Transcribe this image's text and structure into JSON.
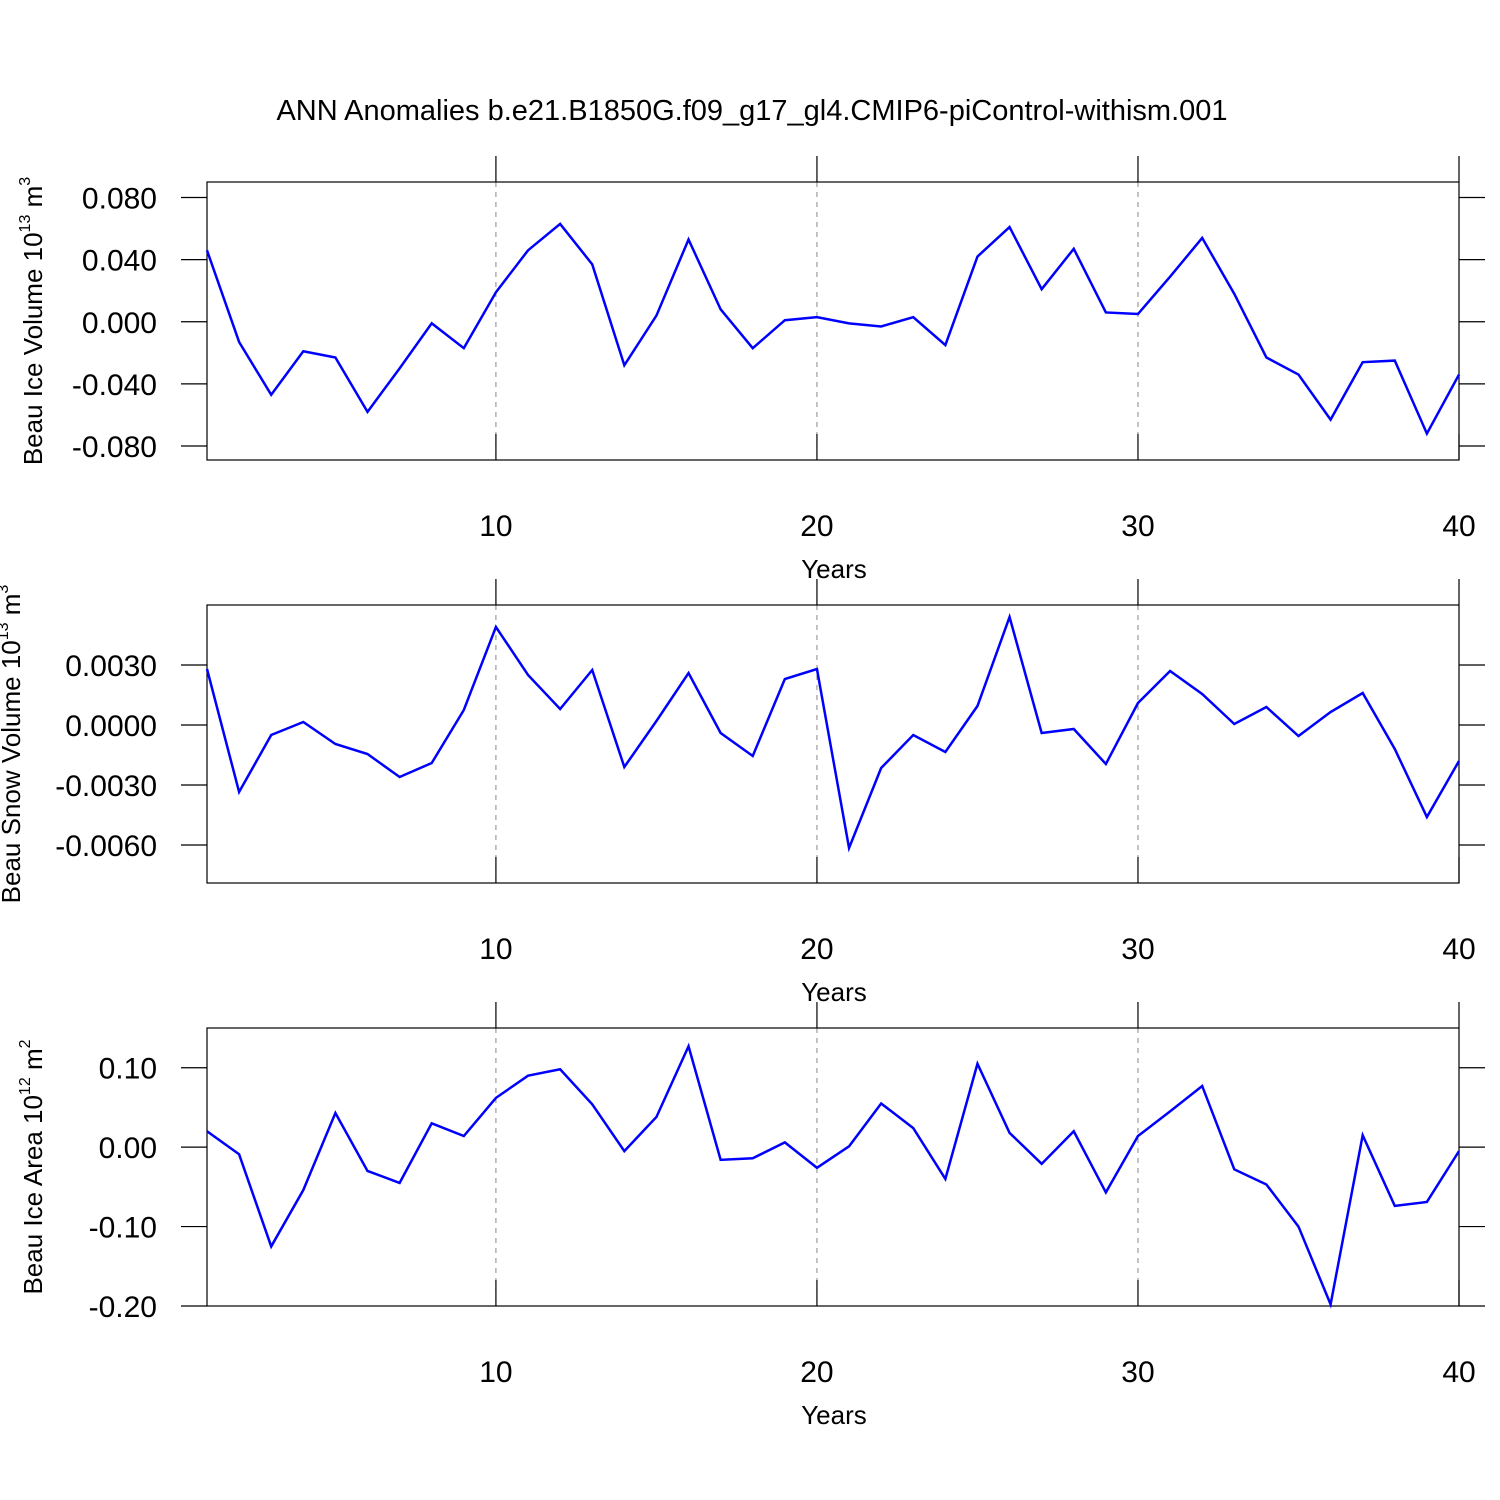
{
  "chart_data": [
    {
      "type": "line",
      "title": "ANN Anomalies b.e21.B1850G.f09_g17_gl4.CMIP6-piControl-withism.001",
      "y_label": [
        "Beau Ice Volume 10",
        "13",
        " m",
        "3"
      ],
      "x_label": "Years",
      "x": [
        1,
        2,
        3,
        4,
        5,
        6,
        7,
        8,
        9,
        10,
        11,
        12,
        13,
        14,
        15,
        16,
        17,
        18,
        19,
        20,
        21,
        22,
        23,
        24,
        25,
        26,
        27,
        28,
        29,
        30,
        31,
        32,
        33,
        34,
        35,
        36,
        37,
        38,
        39,
        40
      ],
      "values": [
        0.046,
        -0.013,
        -0.047,
        -0.019,
        -0.023,
        -0.058,
        -0.03,
        -0.001,
        -0.017,
        0.019,
        0.046,
        0.063,
        0.037,
        -0.028,
        0.004,
        0.053,
        0.008,
        -0.017,
        0.001,
        0.003,
        -0.001,
        -0.003,
        0.003,
        -0.015,
        0.042,
        0.061,
        0.021,
        0.047,
        0.006,
        0.005,
        0.029,
        0.054,
        0.018,
        -0.023,
        -0.034,
        -0.063,
        -0.026,
        -0.025,
        -0.072,
        -0.034
      ],
      "color": "#0000ff",
      "xlim": [
        1,
        40
      ],
      "xticks": [
        10,
        20,
        30,
        40
      ],
      "ylim": [
        -0.089,
        0.09
      ],
      "yticks": [
        {
          "value": 0.08,
          "label": "0.080"
        },
        {
          "value": 0.04,
          "label": "0.040"
        },
        {
          "value": 0,
          "label": "0.000"
        },
        {
          "value": -0.04,
          "label": "-0.040"
        },
        {
          "value": -0.08,
          "label": "-0.080"
        }
      ],
      "grid": true
    },
    {
      "type": "line",
      "y_label": [
        "Beau Snow Volume 10",
        "13",
        " m",
        "3"
      ],
      "x_label": "Years",
      "x": [
        1,
        2,
        3,
        4,
        5,
        6,
        7,
        8,
        9,
        10,
        11,
        12,
        13,
        14,
        15,
        16,
        17,
        18,
        19,
        20,
        21,
        22,
        23,
        24,
        25,
        26,
        27,
        28,
        29,
        30,
        31,
        32,
        33,
        34,
        35,
        36,
        37,
        38,
        39,
        40
      ],
      "values": [
        0.0028,
        -0.00335,
        -0.0005,
        0.00015,
        -0.00095,
        -0.00145,
        -0.0026,
        -0.0019,
        0.00075,
        0.0049,
        0.0025,
        0.0008,
        0.00275,
        -0.0021,
        0.0002,
        0.0026,
        -0.0004,
        -0.00155,
        0.0023,
        0.0028,
        -0.00615,
        -0.00215,
        -0.0005,
        -0.00135,
        0.00095,
        0.0054,
        -0.0004,
        -0.0002,
        -0.00195,
        0.0011,
        0.0027,
        0.00155,
        5e-05,
        0.0009,
        -0.00055,
        0.00065,
        0.0016,
        -0.0012,
        -0.0046,
        -0.0018
      ],
      "color": "#0000ff",
      "xlim": [
        1,
        40
      ],
      "xticks": [
        10,
        20,
        30,
        40
      ],
      "ylim": [
        -0.0079,
        0.006
      ],
      "yticks": [
        {
          "value": 0.003,
          "label": "0.0030"
        },
        {
          "value": 0,
          "label": "0.0000"
        },
        {
          "value": -0.003,
          "label": "-0.0030"
        },
        {
          "value": -0.006,
          "label": "-0.0060"
        }
      ],
      "grid": true
    },
    {
      "type": "line",
      "y_label": [
        "Beau Ice Area 10",
        "12",
        " m",
        "2"
      ],
      "x_label": "Years",
      "x": [
        1,
        2,
        3,
        4,
        5,
        6,
        7,
        8,
        9,
        10,
        11,
        12,
        13,
        14,
        15,
        16,
        17,
        18,
        19,
        20,
        21,
        22,
        23,
        24,
        25,
        26,
        27,
        28,
        29,
        30,
        31,
        32,
        33,
        34,
        35,
        36,
        37,
        38,
        39,
        40
      ],
      "values": [
        0.02,
        -0.009,
        -0.125,
        -0.054,
        0.043,
        -0.03,
        -0.045,
        0.03,
        0.014,
        0.062,
        0.09,
        0.098,
        0.054,
        -0.005,
        0.038,
        0.127,
        -0.016,
        -0.014,
        0.006,
        -0.026,
        0.001,
        0.055,
        0.024,
        -0.04,
        0.105,
        0.018,
        -0.021,
        0.02,
        -0.057,
        0.014,
        0.045,
        0.077,
        -0.028,
        -0.047,
        -0.1,
        -0.198,
        0.015,
        -0.074,
        -0.069,
        -0.005
      ],
      "color": "#0000ff",
      "xlim": [
        1,
        40
      ],
      "xticks": [
        10,
        20,
        30,
        40
      ],
      "ylim": [
        -0.2,
        0.15
      ],
      "yticks": [
        {
          "value": 0.1,
          "label": "0.10"
        },
        {
          "value": 0,
          "label": "0.00"
        },
        {
          "value": -0.1,
          "label": "-0.10"
        },
        {
          "value": -0.2,
          "label": "-0.20"
        }
      ],
      "grid": true
    }
  ]
}
